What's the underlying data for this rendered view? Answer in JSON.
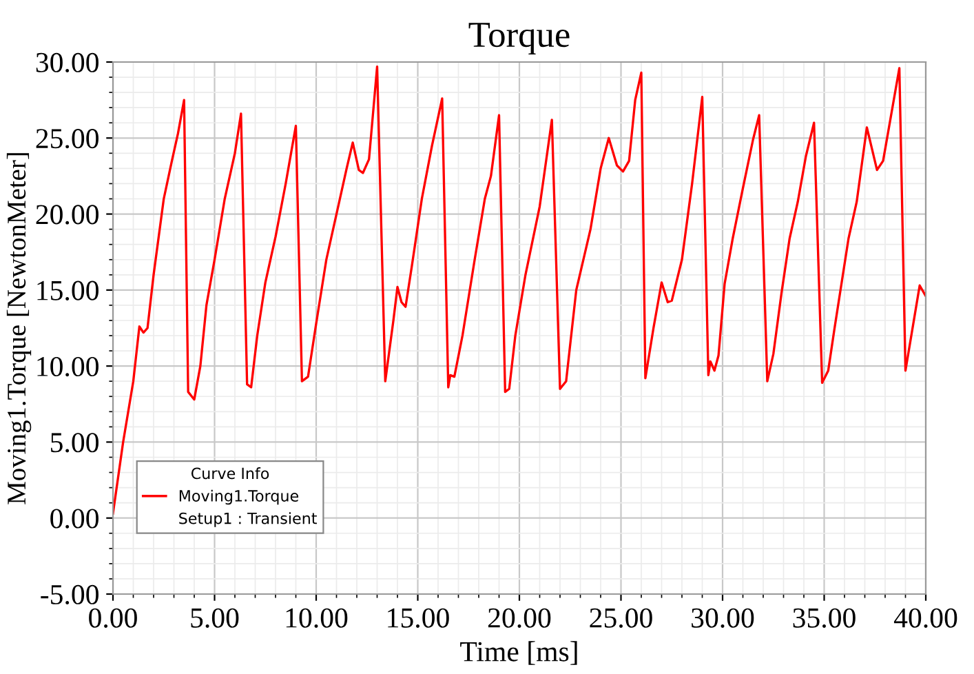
{
  "chart_data": {
    "type": "line",
    "title": "Torque",
    "xlabel": "Time [ms]",
    "ylabel": "Moving1.Torque [NewtonMeter]",
    "legend_title": "Curve Info",
    "annotations": [
      "Setup1 : Transient"
    ],
    "legend": "bottom left",
    "grid": true,
    "xlim": [
      0,
      40
    ],
    "ylim": [
      -5,
      30
    ],
    "xticks": [
      {
        "value": 0,
        "label": "0.00"
      },
      {
        "value": 5,
        "label": "5.00"
      },
      {
        "value": 10,
        "label": "10.00"
      },
      {
        "value": 15,
        "label": "15.00"
      },
      {
        "value": 20,
        "label": "20.00"
      },
      {
        "value": 25,
        "label": "25.00"
      },
      {
        "value": 30,
        "label": "30.00"
      },
      {
        "value": 35,
        "label": "35.00"
      },
      {
        "value": 40,
        "label": "40.00"
      }
    ],
    "yticks": [
      {
        "value": -5,
        "label": "-5.00"
      },
      {
        "value": 0,
        "label": "0.00"
      },
      {
        "value": 5,
        "label": "5.00"
      },
      {
        "value": 10,
        "label": "10.00"
      },
      {
        "value": 15,
        "label": "15.00"
      },
      {
        "value": 20,
        "label": "20.00"
      },
      {
        "value": 25,
        "label": "25.00"
      },
      {
        "value": 30,
        "label": "30.00"
      }
    ],
    "series": [
      {
        "name": "Moving1.Torque",
        "color": "#ff0000",
        "x": [
          0,
          0.5,
          1.0,
          1.3,
          1.5,
          1.7,
          2.0,
          2.5,
          2.9,
          3.2,
          3.5,
          3.7,
          4.0,
          4.3,
          4.6,
          5.0,
          5.5,
          6.0,
          6.3,
          6.6,
          6.8,
          7.1,
          7.5,
          8.0,
          8.5,
          9.0,
          9.3,
          9.6,
          10.0,
          10.5,
          11.0,
          11.5,
          11.8,
          12.1,
          12.3,
          12.6,
          13.0,
          13.4,
          13.8,
          14.0,
          14.2,
          14.4,
          14.7,
          15.2,
          15.7,
          16.2,
          16.5,
          16.6,
          16.8,
          17.2,
          17.8,
          18.3,
          18.6,
          19.0,
          19.3,
          19.5,
          19.8,
          20.3,
          21.0,
          21.6,
          22.0,
          22.3,
          22.8,
          23.5,
          24.0,
          24.4,
          24.8,
          25.1,
          25.4,
          25.7,
          26.0,
          26.2,
          26.6,
          27.0,
          27.3,
          27.5,
          28.0,
          28.5,
          29.0,
          29.3,
          29.4,
          29.6,
          29.8,
          30.1,
          30.5,
          31.0,
          31.5,
          31.8,
          32.2,
          32.5,
          32.9,
          33.3,
          33.7,
          34.1,
          34.5,
          34.9,
          35.2,
          35.5,
          36.2,
          36.6,
          37.1,
          37.6,
          37.9,
          38.7,
          39.0,
          39.7,
          40.0
        ],
        "values": [
          0.3,
          5,
          9,
          12.6,
          12.2,
          12.5,
          16,
          21,
          23.5,
          25.3,
          27.5,
          8.3,
          7.8,
          10,
          14,
          17,
          21,
          24,
          26.6,
          8.8,
          8.6,
          12,
          15.5,
          18.5,
          22,
          25.8,
          9.0,
          9.3,
          12.8,
          17,
          20,
          23,
          24.7,
          22.9,
          22.7,
          23.6,
          29.7,
          9.0,
          13,
          15.2,
          14.2,
          13.9,
          16.5,
          21,
          24.5,
          27.6,
          8.6,
          9.4,
          9.3,
          12,
          17,
          21,
          22.5,
          26.5,
          8.3,
          8.5,
          12,
          16,
          20.5,
          26.2,
          8.5,
          9.0,
          15,
          19,
          23,
          25.0,
          23.2,
          22.8,
          23.5,
          27.5,
          29.3,
          9.2,
          12.5,
          15.5,
          14.2,
          14.3,
          17,
          22,
          27.7,
          9.4,
          10.3,
          9.7,
          10.7,
          15.4,
          18.4,
          21.7,
          24.9,
          26.5,
          9.0,
          10.8,
          14.8,
          18.4,
          20.8,
          23.8,
          26.0,
          8.9,
          9.7,
          12.4,
          18.4,
          20.8,
          25.7,
          22.9,
          23.5,
          29.6,
          9.7,
          15.3,
          14.6
        ]
      }
    ]
  }
}
